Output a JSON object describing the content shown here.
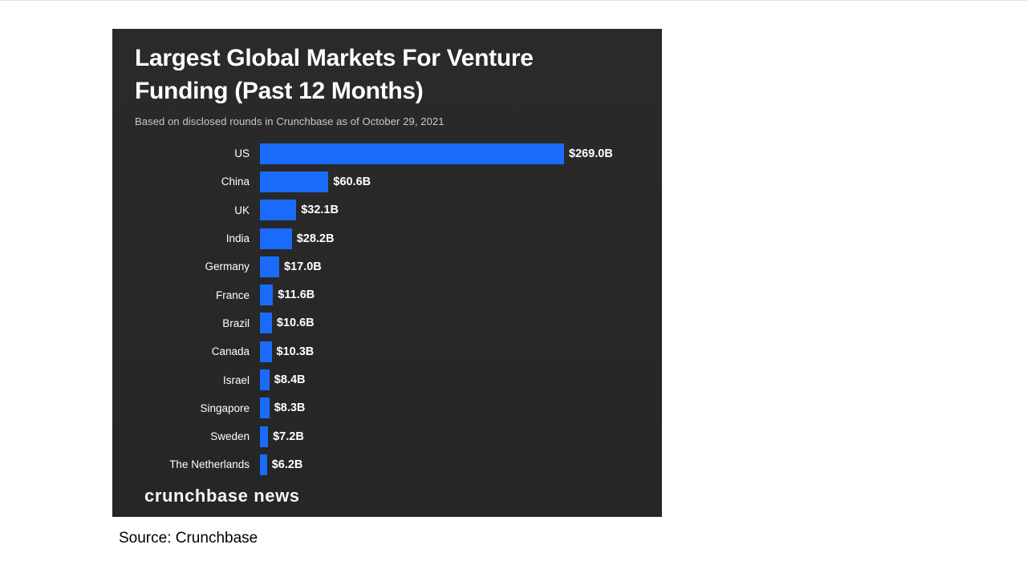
{
  "page": {
    "source_caption": "Source: Crunchbase"
  },
  "chart_data": {
    "type": "bar",
    "orientation": "horizontal",
    "title": "Largest Global Markets For Venture Funding (Past 12 Months)",
    "title_lines": {
      "line1": "Largest Global Markets For Venture",
      "line2": "Funding (Past 12 Months)"
    },
    "subtitle": "Based on disclosed rounds in Crunchbase as of October 29, 2021",
    "categories": [
      "US",
      "China",
      "UK",
      "India",
      "Germany",
      "France",
      "Brazil",
      "Canada",
      "Israel",
      "Singapore",
      "Sweden",
      "The Netherlands"
    ],
    "values": [
      269.0,
      60.6,
      32.1,
      28.2,
      17.0,
      11.6,
      10.6,
      10.3,
      8.4,
      8.3,
      7.2,
      6.2
    ],
    "value_labels": [
      "$269.0B",
      "$60.6B",
      "$32.1B",
      "$28.2B",
      "$17.0B",
      "$11.6B",
      "$10.6B",
      "$10.3B",
      "$8.4B",
      "$8.3B",
      "$7.2B",
      "$6.2B"
    ],
    "value_unit": "USD billions",
    "xlim": [
      0,
      269
    ],
    "grid": false,
    "legend": "none",
    "colors": {
      "bar": "#1a6bfa",
      "panel_background": "#282828",
      "title_text": "#ffffff",
      "subtitle_text": "#c9c9c9",
      "label_text": "#ffffff"
    },
    "branding": "crunchbase news"
  }
}
